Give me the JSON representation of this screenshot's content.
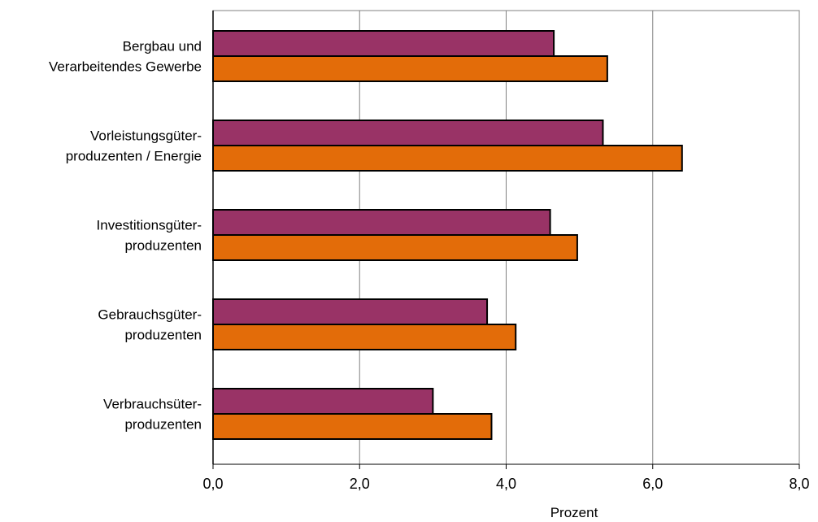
{
  "chart_data": {
    "type": "bar",
    "orientation": "horizontal",
    "categories": [
      [
        "Bergbau und",
        "Verarbeitendes Gewerbe"
      ],
      [
        "Vorleistungsgüter-",
        "produzenten /  Energie"
      ],
      [
        "Investitionsgüter-",
        "produzenten"
      ],
      [
        "Gebrauchsgüter-",
        "produzenten"
      ],
      [
        "Verbrauchsüter-",
        "produzenten"
      ]
    ],
    "series": [
      {
        "color": "#993366",
        "values": [
          4.65,
          5.32,
          4.6,
          3.74,
          3.0
        ]
      },
      {
        "color": "#E36C09",
        "values": [
          5.38,
          6.4,
          4.97,
          4.13,
          3.8
        ]
      }
    ],
    "xlim": [
      0,
      8
    ],
    "xticks": [
      0,
      2,
      4,
      6,
      8
    ],
    "xtick_labels": [
      "0,0",
      "2,0",
      "4,0",
      "6,0",
      "8,0"
    ],
    "xlabel": "Prozent",
    "ylabel": "",
    "title": "",
    "grid": "vertical",
    "legend": "none"
  }
}
